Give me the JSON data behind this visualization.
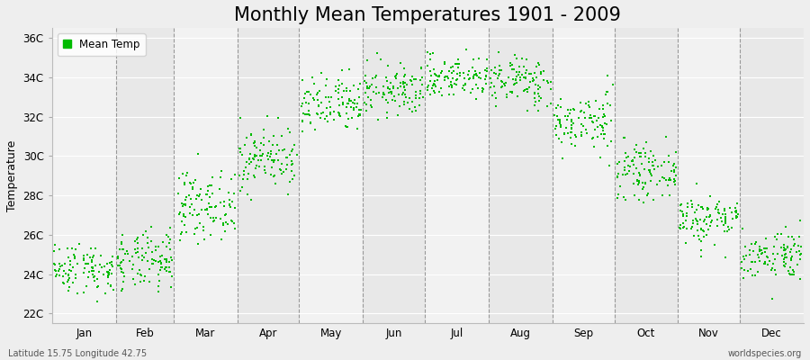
{
  "title": "Monthly Mean Temperatures 1901 - 2009",
  "ylabel": "Temperature",
  "y_ticks": [
    "22C",
    "24C",
    "26C",
    "28C",
    "30C",
    "32C",
    "34C",
    "36C"
  ],
  "y_tick_vals": [
    22,
    24,
    26,
    28,
    30,
    32,
    34,
    36
  ],
  "ylim": [
    21.5,
    36.5
  ],
  "months": [
    "Jan",
    "Feb",
    "Mar",
    "Apr",
    "May",
    "Jun",
    "Jul",
    "Aug",
    "Sep",
    "Oct",
    "Nov",
    "Dec"
  ],
  "month_days": [
    31,
    28,
    31,
    30,
    31,
    30,
    31,
    31,
    30,
    31,
    30,
    31
  ],
  "dot_color": "#00BB00",
  "background_color": "#EEEEEE",
  "plot_bg_color": "#EBEBEB",
  "band_color_odd": "#E8E8E8",
  "band_color_even": "#F2F2F2",
  "legend_label": "Mean Temp",
  "footer_left": "Latitude 15.75 Longitude 42.75",
  "footer_right": "worldspecies.org",
  "title_fontsize": 15,
  "label_fontsize": 9,
  "tick_fontsize": 8.5,
  "monthly_means": [
    24.3,
    24.6,
    27.5,
    29.9,
    32.5,
    33.3,
    34.0,
    33.8,
    31.7,
    29.2,
    26.8,
    25.0
  ],
  "monthly_stds": [
    0.65,
    0.75,
    0.85,
    0.8,
    0.75,
    0.65,
    0.55,
    0.65,
    0.75,
    0.65,
    0.65,
    0.65
  ],
  "n_years": 109,
  "seed": 42
}
